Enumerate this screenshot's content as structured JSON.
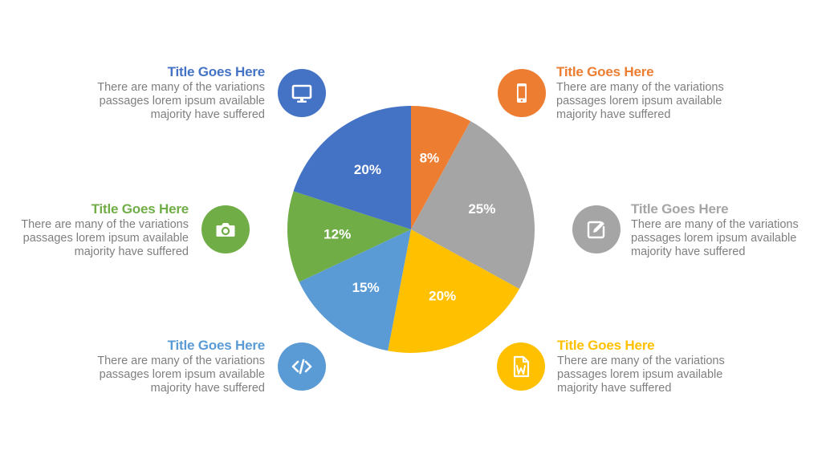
{
  "chart_data": {
    "type": "pie",
    "start": "top",
    "direction": "clockwise",
    "slices": [
      {
        "value": 8,
        "label": "8%",
        "color": "#ED7D31"
      },
      {
        "value": 25,
        "label": "25%",
        "color": "#A5A5A5"
      },
      {
        "value": 20,
        "label": "20%",
        "color": "#FFC000"
      },
      {
        "value": 15,
        "label": "15%",
        "color": "#5B9BD5"
      },
      {
        "value": 12,
        "label": "12%",
        "color": "#70AD47"
      },
      {
        "value": 20,
        "label": "20%",
        "color": "#4472C4"
      }
    ]
  },
  "blocks": [
    {
      "title": "Title Goes Here",
      "body": "There are many of the variations passages lorem ipsum available majority have suffered",
      "color": "#4472C4",
      "icon": "monitor-icon"
    },
    {
      "title": "Title Goes Here",
      "body": "There are many of the variations passages lorem ipsum available majority have suffered",
      "color": "#70AD47",
      "icon": "camera-icon"
    },
    {
      "title": "Title Goes Here",
      "body": "There are many of the variations passages lorem ipsum available majority have suffered",
      "color": "#5B9BD5",
      "icon": "code-icon"
    },
    {
      "title": "Title Goes Here",
      "body": "There are many of the variations passages lorem ipsum available majority have suffered",
      "color": "#ED7D31",
      "icon": "smartphone-icon"
    },
    {
      "title": "Title Goes Here",
      "body": "There are many of the variations passages lorem ipsum available majority have suffered",
      "color": "#A5A5A5",
      "icon": "edit-icon"
    },
    {
      "title": "Title Goes Here",
      "body": "There are many of the variations passages lorem ipsum available majority have suffered",
      "color": "#FFC000",
      "icon": "word-document-icon"
    }
  ]
}
